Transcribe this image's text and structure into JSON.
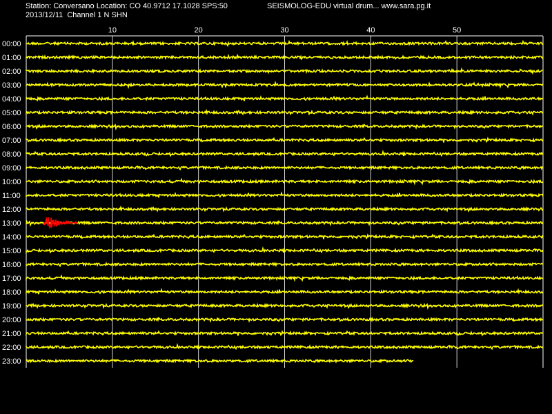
{
  "header": {
    "station_line": "Station: Conversano Location: CO 40.9712 17.1028 SPS:50",
    "app_line": "SEISMOLOG-EDU virtual drum... www.sara.pg.it",
    "date_channel": "2013/12/11  Channel 1 N SHN"
  },
  "chart_data": {
    "type": "line",
    "title": "",
    "x_ticks": [
      "10",
      "20",
      "30",
      "40",
      "50"
    ],
    "x_tick_values": [
      10,
      20,
      30,
      40,
      50
    ],
    "xlim": [
      0,
      60
    ],
    "rows": [
      "00:00",
      "01:00",
      "02:00",
      "03:00",
      "04:00",
      "05:00",
      "06:00",
      "07:00",
      "08:00",
      "09:00",
      "10:00",
      "11:00",
      "12:00",
      "13:00",
      "14:00",
      "15:00",
      "16:00",
      "17:00",
      "18:00",
      "19:00",
      "20:00",
      "21:00",
      "22:00",
      "23:00"
    ],
    "row_end_minute": [
      60,
      60,
      60,
      60,
      60,
      60,
      60,
      60,
      60,
      60,
      60,
      60,
      60,
      60,
      60,
      60,
      60,
      60,
      60,
      60,
      60,
      60,
      60,
      45
    ],
    "event": {
      "row": "13:00",
      "start_minute": 2.0,
      "end_minute": 6.0,
      "color": "#ff0000"
    },
    "trace_color": "#ffff00",
    "grid": true
  },
  "colors": {
    "background": "#000000",
    "grid": "#ffffff",
    "text": "#ffffff"
  }
}
